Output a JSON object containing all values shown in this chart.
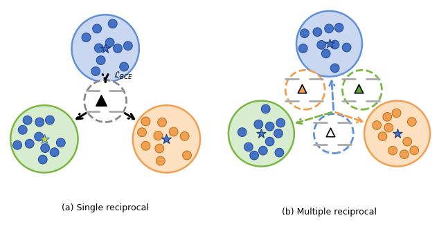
{
  "fig_width": 6.34,
  "fig_height": 3.44,
  "dpi": 100,
  "caption_a": "(a) Single reciprocal",
  "caption_b": "(b) Multiple reciprocal",
  "label_bce": "$\\mathcal{L}_{BCE}$",
  "colors": {
    "blue_fill": "#c9d8f0",
    "blue_border": "#6090d8",
    "blue_dot": "#4472c4",
    "blue_dot_edge": "#2a50a0",
    "green_fill": "#d8edd0",
    "green_border": "#78b840",
    "green_dot": "#5aaa30",
    "orange_fill": "#fde0c0",
    "orange_border": "#f0a050",
    "orange_dot": "#f0a050",
    "black": "#111111",
    "gray_dash": "#888888",
    "hash_color": "#aaaaaa"
  }
}
